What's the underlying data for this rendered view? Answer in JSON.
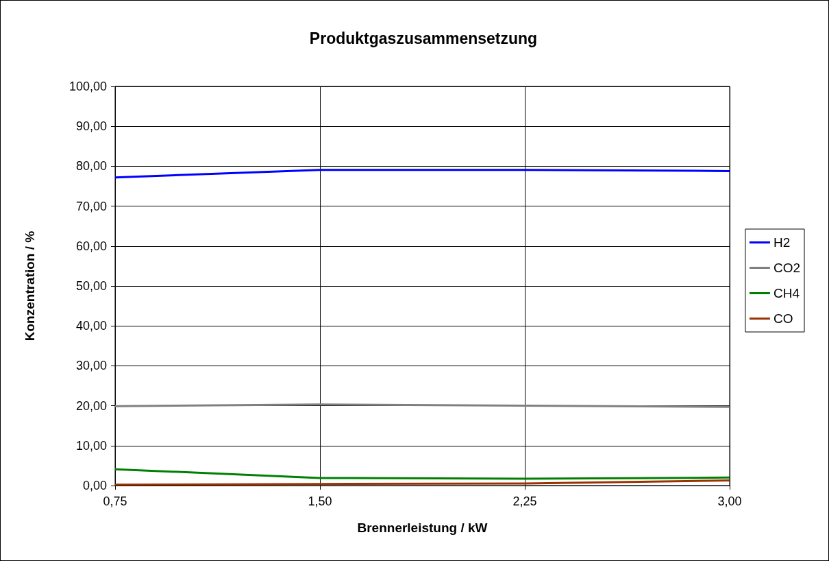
{
  "chart_data": {
    "type": "line",
    "title": "Produktgaszusammensetzung",
    "xlabel": "Brennerleistung / kW",
    "ylabel": "Konzentration / %",
    "categories": [
      "0,75",
      "1,50",
      "2,25",
      "3,00"
    ],
    "series": [
      {
        "name": "H2",
        "color": "#0000ff",
        "values": [
          77.2,
          79.1,
          79.1,
          78.8
        ]
      },
      {
        "name": "CO2",
        "color": "#808080",
        "values": [
          19.9,
          20.3,
          20.0,
          19.7
        ]
      },
      {
        "name": "CH4",
        "color": "#008000",
        "values": [
          4.1,
          1.9,
          1.7,
          2.0
        ]
      },
      {
        "name": "CO",
        "color": "#993300",
        "values": [
          0.2,
          0.4,
          0.5,
          1.3
        ]
      }
    ],
    "ylim": [
      0,
      100
    ],
    "yticks": [
      {
        "value": 0,
        "label": "0,00"
      },
      {
        "value": 10,
        "label": "10,00"
      },
      {
        "value": 20,
        "label": "20,00"
      },
      {
        "value": 30,
        "label": "30,00"
      },
      {
        "value": 40,
        "label": "40,00"
      },
      {
        "value": 50,
        "label": "50,00"
      },
      {
        "value": 60,
        "label": "60,00"
      },
      {
        "value": 70,
        "label": "70,00"
      },
      {
        "value": 80,
        "label": "80,00"
      },
      {
        "value": 90,
        "label": "90,00"
      },
      {
        "value": 100,
        "label": "100,00"
      }
    ],
    "grid": true,
    "legend": "right",
    "marker": "none",
    "line_style": "solid"
  }
}
